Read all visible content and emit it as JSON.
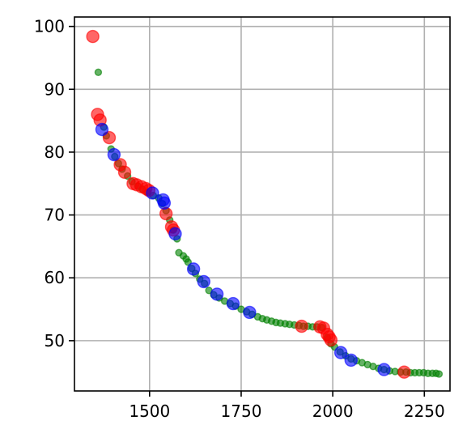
{
  "chart_data": {
    "type": "scatter",
    "title": "",
    "xlabel": "",
    "ylabel": "",
    "xlim": [
      1295,
      2320
    ],
    "ylim": [
      42,
      101.5
    ],
    "grid": true,
    "x_ticks": [
      1500,
      1750,
      2000,
      2250
    ],
    "y_ticks": [
      50,
      60,
      70,
      80,
      90,
      100
    ],
    "colors": {
      "green": "#008000",
      "red": "#ff0000",
      "blue": "#0000ff",
      "grid": "#b0b0b0",
      "axis": "#000000"
    },
    "series": [
      {
        "color": "#008000",
        "marker_size": "small",
        "points": [
          [
            1360,
            92.7
          ],
          [
            1375,
            84.0
          ],
          [
            1382,
            82.6
          ],
          [
            1395,
            80.5
          ],
          [
            1405,
            79.3
          ],
          [
            1415,
            78.2
          ],
          [
            1425,
            77.3
          ],
          [
            1440,
            76.2
          ],
          [
            1452,
            75.3
          ],
          [
            1468,
            74.6
          ],
          [
            1480,
            74.1
          ],
          [
            1495,
            73.6
          ],
          [
            1510,
            73.1
          ],
          [
            1525,
            72.7
          ],
          [
            1535,
            71.8
          ],
          [
            1545,
            70.7
          ],
          [
            1555,
            69.2
          ],
          [
            1565,
            67.6
          ],
          [
            1575,
            66.2
          ],
          [
            1580,
            64.0
          ],
          [
            1592,
            63.5
          ],
          [
            1600,
            63.0
          ],
          [
            1605,
            62.5
          ],
          [
            1615,
            61.5
          ],
          [
            1625,
            60.7
          ],
          [
            1637,
            59.8
          ],
          [
            1650,
            59.1
          ],
          [
            1662,
            58.0
          ],
          [
            1675,
            57.3
          ],
          [
            1690,
            56.8
          ],
          [
            1705,
            56.3
          ],
          [
            1720,
            55.9
          ],
          [
            1735,
            55.5
          ],
          [
            1750,
            55.0
          ],
          [
            1765,
            54.6
          ],
          [
            1780,
            54.2
          ],
          [
            1795,
            53.8
          ],
          [
            1808,
            53.5
          ],
          [
            1820,
            53.3
          ],
          [
            1833,
            53.1
          ],
          [
            1845,
            52.9
          ],
          [
            1857,
            52.8
          ],
          [
            1870,
            52.7
          ],
          [
            1882,
            52.6
          ],
          [
            1895,
            52.5
          ],
          [
            1908,
            52.4
          ],
          [
            1920,
            52.3
          ],
          [
            1932,
            52.3
          ],
          [
            1945,
            52.2
          ],
          [
            1957,
            52.2
          ],
          [
            1970,
            52.1
          ],
          [
            1985,
            50.5
          ],
          [
            1995,
            49.5
          ],
          [
            2005,
            49.0
          ],
          [
            2020,
            48.2
          ],
          [
            2035,
            47.6
          ],
          [
            2050,
            47.1
          ],
          [
            2065,
            46.8
          ],
          [
            2080,
            46.5
          ],
          [
            2095,
            46.2
          ],
          [
            2110,
            45.9
          ],
          [
            2125,
            45.6
          ],
          [
            2140,
            45.4
          ],
          [
            2155,
            45.2
          ],
          [
            2170,
            45.1
          ],
          [
            2185,
            45.0
          ],
          [
            2200,
            45.0
          ],
          [
            2212,
            44.9
          ],
          [
            2224,
            44.9
          ],
          [
            2236,
            44.9
          ],
          [
            2248,
            44.9
          ],
          [
            2260,
            44.8
          ],
          [
            2272,
            44.8
          ],
          [
            2282,
            44.8
          ],
          [
            2290,
            44.7
          ]
        ]
      },
      {
        "color": "#ff0000",
        "marker_size": "large",
        "points": [
          [
            1345,
            98.4
          ],
          [
            1358,
            86.0
          ],
          [
            1365,
            85.1
          ],
          [
            1390,
            82.3
          ],
          [
            1420,
            78.0
          ],
          [
            1432,
            76.8
          ],
          [
            1455,
            75.0
          ],
          [
            1465,
            74.8
          ],
          [
            1478,
            74.5
          ],
          [
            1490,
            74.2
          ],
          [
            1498,
            73.9
          ],
          [
            1545,
            70.2
          ],
          [
            1560,
            68.1
          ],
          [
            1565,
            67.6
          ],
          [
            1915,
            52.3
          ],
          [
            1965,
            52.2
          ],
          [
            1975,
            52.0
          ],
          [
            1985,
            51.0
          ],
          [
            1990,
            50.6
          ],
          [
            1995,
            50.1
          ],
          [
            2195,
            45.0
          ]
        ]
      },
      {
        "color": "#0000ff",
        "marker_size": "large",
        "points": [
          [
            1370,
            83.6
          ],
          [
            1403,
            79.6
          ],
          [
            1508,
            73.5
          ],
          [
            1537,
            72.4
          ],
          [
            1540,
            71.9
          ],
          [
            1570,
            67.0
          ],
          [
            1620,
            61.4
          ],
          [
            1648,
            59.4
          ],
          [
            1684,
            57.4
          ],
          [
            1728,
            55.9
          ],
          [
            1773,
            54.5
          ],
          [
            2022,
            48.1
          ],
          [
            2050,
            46.9
          ],
          [
            2140,
            45.4
          ]
        ]
      }
    ]
  }
}
